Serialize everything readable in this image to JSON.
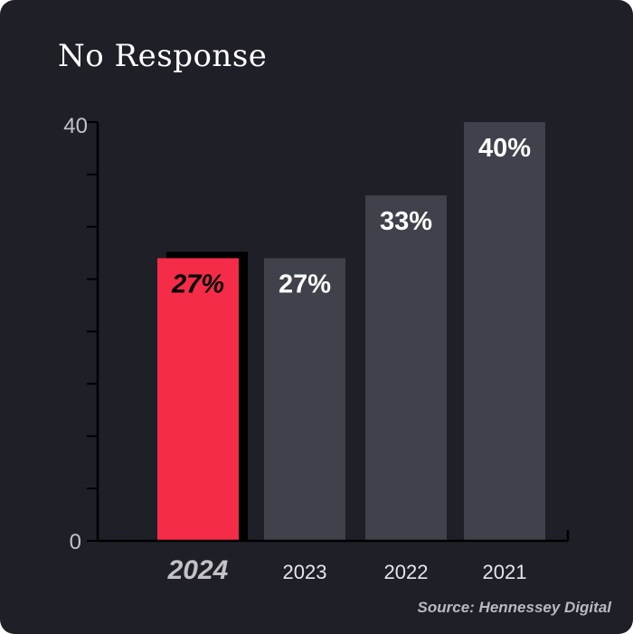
{
  "chart_data": {
    "type": "bar",
    "title": "No Response",
    "categories": [
      "2024",
      "2023",
      "2022",
      "2021"
    ],
    "values": [
      27,
      27,
      33,
      40
    ],
    "value_labels": [
      "27%",
      "27%",
      "33%",
      "40%"
    ],
    "highlight_index": 0,
    "ylim": [
      0,
      40
    ],
    "y_tick_labels": [
      "0",
      "40"
    ],
    "minor_ticks": 8,
    "colors": {
      "background": "#1e1f27",
      "highlight_bar": "#f52c48",
      "bar": "#3f414b",
      "axis": "#000000",
      "tick_label": "#c2c2c7",
      "highlight_label": "#000000",
      "value_label": "#ffffff"
    },
    "source": "Source: Hennessey Digital"
  }
}
